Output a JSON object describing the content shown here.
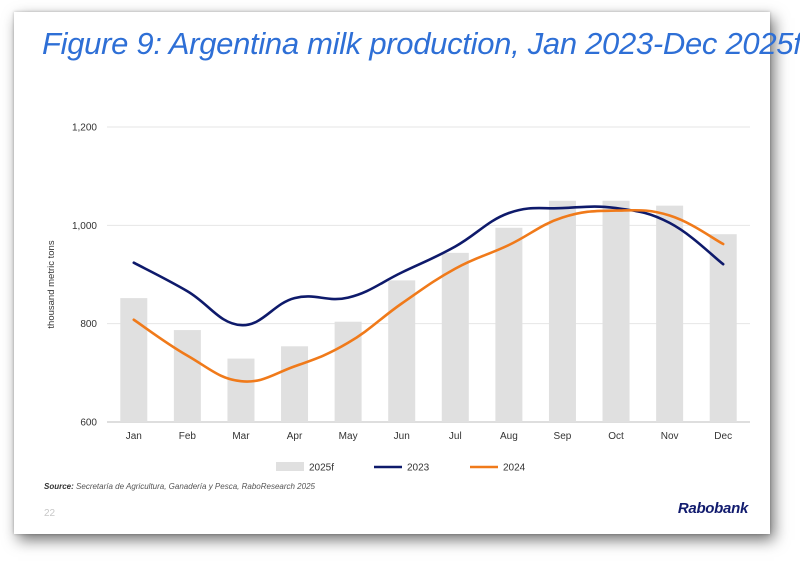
{
  "slide": {
    "title": "Figure 9: Argentina milk production, Jan 2023-Dec 2025f",
    "source_label": "Source:",
    "source_text": "Secretaría de Agricultura, Ganadería y Pesca, RaboResearch 2025",
    "page_number": "22",
    "brand": "Rabobank"
  },
  "chart_data": {
    "type": "bar",
    "title": "Figure 9: Argentina milk production, Jan 2023-Dec 2025f",
    "xlabel": "",
    "ylabel": "thousand metric tons",
    "ylim": [
      600,
      1200
    ],
    "yticks": [
      600,
      800,
      1000,
      1200
    ],
    "ytick_labels": [
      "600",
      "800",
      "1,000",
      "1,200"
    ],
    "categories": [
      "Jan",
      "Feb",
      "Mar",
      "Apr",
      "May",
      "Jun",
      "Jul",
      "Aug",
      "Sep",
      "Oct",
      "Nov",
      "Dec"
    ],
    "grid": "horizontal",
    "legend_position": "bottom",
    "series": [
      {
        "name": "2025f",
        "type": "bar",
        "color": "#e0e0e0",
        "values": [
          852,
          787,
          729,
          754,
          804,
          888,
          944,
          995,
          1050,
          1050,
          1040,
          982
        ]
      },
      {
        "name": "2023",
        "type": "line",
        "color": "#0e1a6b",
        "values": [
          924,
          866,
          797,
          852,
          853,
          904,
          957,
          1025,
          1035,
          1035,
          1005,
          921
        ]
      },
      {
        "name": "2024",
        "type": "line",
        "color": "#f07a1a",
        "values": [
          808,
          735,
          683,
          713,
          761,
          841,
          912,
          960,
          1016,
          1030,
          1020,
          962
        ]
      }
    ]
  }
}
